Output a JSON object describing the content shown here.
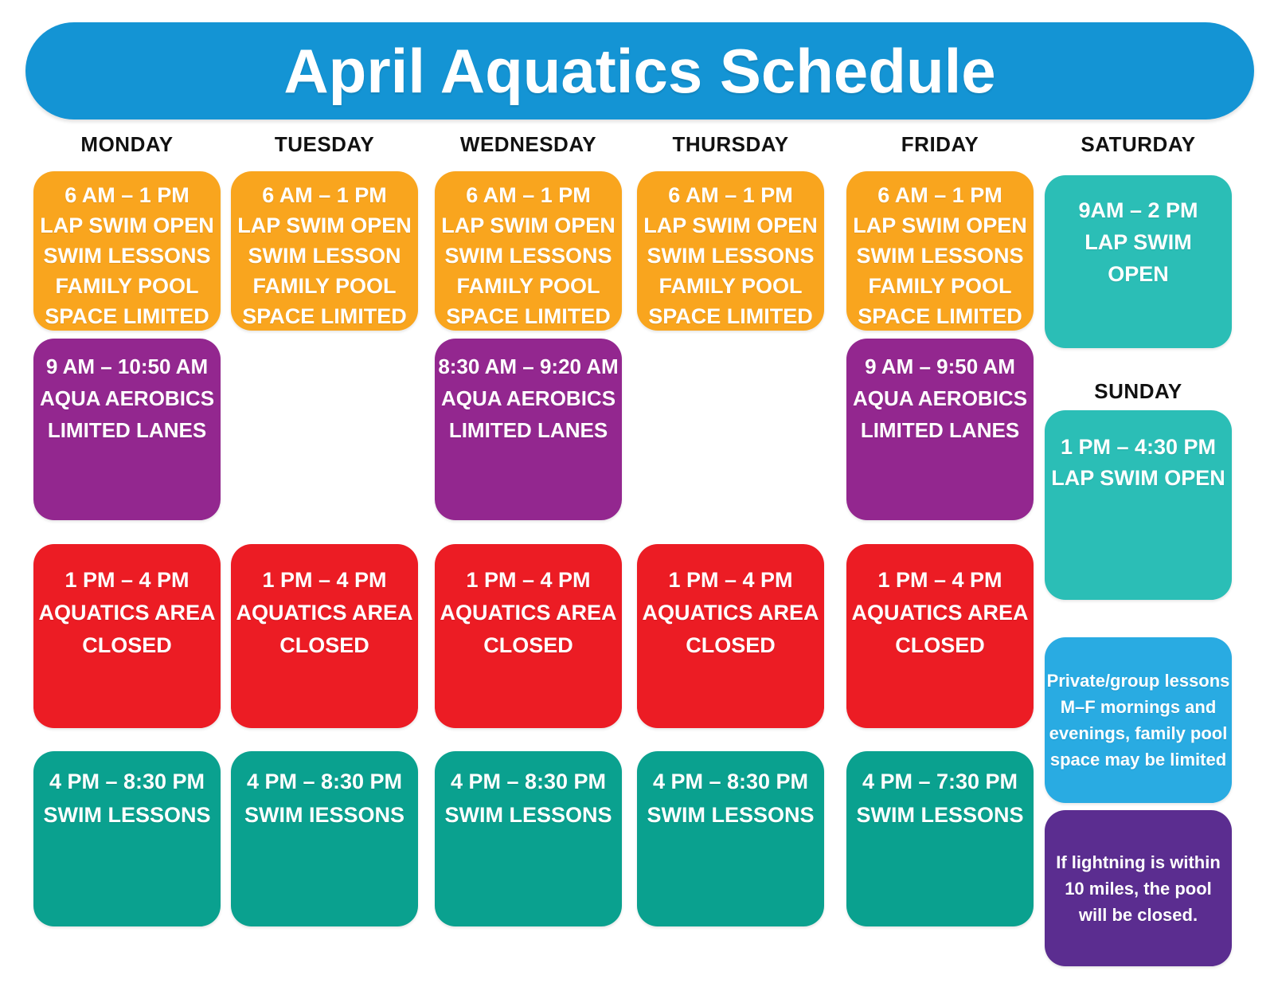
{
  "title": "April Aquatics Schedule",
  "days": [
    "MONDAY",
    "TUESDAY",
    "WEDNESDAY",
    "THURSDAY",
    "FRIDAY",
    "SATURDAY",
    "SUNDAY"
  ],
  "schedule": {
    "monday": {
      "morning": [
        "6 AM – 1 PM",
        "LAP SWIM OPEN",
        "SWIM LESSONS",
        "FAMILY POOL",
        "SPACE LIMITED"
      ],
      "aerobics": [
        "9 AM – 10:50 AM",
        "AQUA AEROBICS",
        "LIMITED LANES"
      ],
      "closed": [
        "1 PM – 4 PM",
        "AQUATICS AREA",
        "CLOSED"
      ],
      "lessons": [
        "4 PM – 8:30 PM",
        "SWIM LESSONS"
      ]
    },
    "tuesday": {
      "morning": [
        "6 AM – 1 PM",
        "LAP SWIM OPEN",
        "SWIM LESSON",
        "FAMILY POOL",
        "SPACE LIMITED"
      ],
      "closed": [
        "1 PM – 4 PM",
        "AQUATICS AREA",
        "CLOSED"
      ],
      "lessons": [
        "4 PM – 8:30 PM",
        "SWIM IESSONS"
      ]
    },
    "wednesday": {
      "morning": [
        "6 AM – 1 PM",
        "LAP SWIM OPEN",
        "SWIM LESSONS",
        "FAMILY POOL",
        "SPACE LIMITED"
      ],
      "aerobics": [
        "8:30 AM – 9:20 AM",
        "AQUA AEROBICS",
        "LIMITED LANES"
      ],
      "closed": [
        "1 PM – 4 PM",
        "AQUATICS AREA",
        "CLOSED"
      ],
      "lessons": [
        "4 PM – 8:30 PM",
        "SWIM LESSONS"
      ]
    },
    "thursday": {
      "morning": [
        "6 AM – 1 PM",
        "LAP SWIM OPEN",
        "SWIM LESSONS",
        "FAMILY POOL",
        "SPACE LIMITED"
      ],
      "closed": [
        "1 PM – 4 PM",
        "AQUATICS AREA",
        "CLOSED"
      ],
      "lessons": [
        "4 PM – 8:30 PM",
        "SWIM LESSONS"
      ]
    },
    "friday": {
      "morning": [
        "6 AM – 1 PM",
        "LAP SWIM OPEN",
        "SWIM LESSONS",
        "FAMILY POOL",
        "SPACE LIMITED"
      ],
      "aerobics": [
        "9 AM – 9:50 AM",
        "AQUA AEROBICS",
        "LIMITED LANES"
      ],
      "closed": [
        "1 PM – 4 PM",
        "AQUATICS AREA",
        "CLOSED"
      ],
      "lessons": [
        "4 PM – 7:30 PM",
        "SWIM LESSONS"
      ]
    },
    "saturday": {
      "open": [
        "9AM – 2 PM",
        "LAP SWIM",
        "OPEN"
      ]
    },
    "sunday": {
      "open": [
        "1 PM – 4:30 PM",
        "LAP SWIM OPEN"
      ]
    }
  },
  "notes": {
    "private_lessons": [
      "Private/group lessons",
      "M–F mornings and",
      "evenings, family pool",
      "space may be limited"
    ],
    "lightning": [
      "If lightning is within",
      "10 miles, the pool",
      "will be closed."
    ]
  },
  "colors": {
    "banner_blue": "#1494D4",
    "morning_orange": "#F9A51E",
    "aerobics_purple": "#93278F",
    "closed_red": "#EC1C24",
    "lessons_green": "#0AA18F",
    "weekend_teal": "#2BBEB6",
    "note_light_blue": "#29ABE2",
    "note_dark_purple": "#5B2D90",
    "header_text": "#111111"
  }
}
